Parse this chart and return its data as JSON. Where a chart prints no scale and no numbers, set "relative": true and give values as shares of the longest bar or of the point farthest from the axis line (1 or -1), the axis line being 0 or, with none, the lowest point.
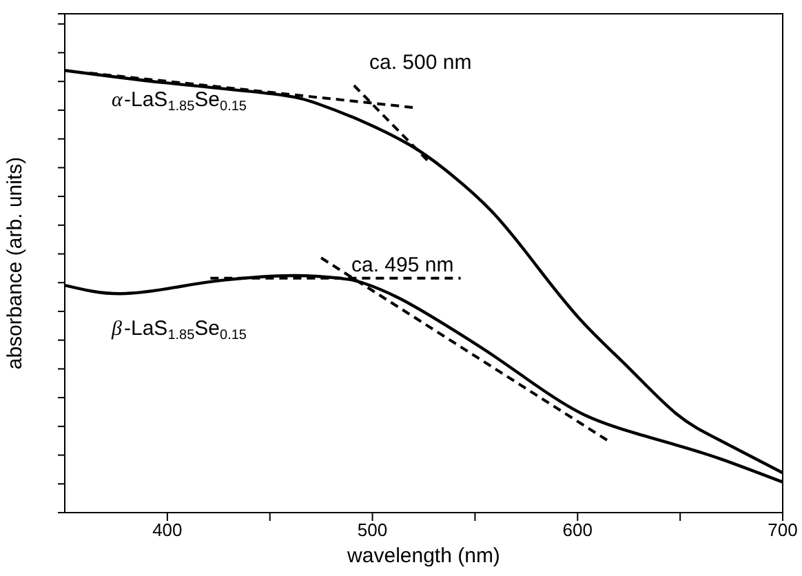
{
  "chart_data": {
    "type": "line",
    "xlabel": "wavelength (nm)",
    "ylabel": "absorbance (arb. units)",
    "relative": true,
    "xlim": [
      350,
      700
    ],
    "xticks": [
      400,
      {
        "value": 450,
        "label": null
      },
      500,
      {
        "value": 550,
        "label": null
      },
      600,
      {
        "value": 650,
        "label": null
      },
      700
    ],
    "tick_labels": "x",
    "grid": false,
    "legend": "top left",
    "marker": "none",
    "annotations": [
      "ca. 500 nm",
      "ca. 495 nm"
    ],
    "series": [
      {
        "name": "α-LaS$_{1.85}$Se$_{0.15}$",
        "color": "#000000",
        "line_style": "solid",
        "x": [
          350,
          399,
          451,
          473,
          495,
          518,
          535,
          558,
          580,
          602,
          625,
          648,
          670,
          700
        ],
        "values": [
          1.0,
          0.972,
          0.947,
          0.925,
          0.885,
          0.832,
          0.777,
          0.682,
          0.558,
          0.433,
          0.327,
          0.224,
          0.162,
          0.09
        ]
      },
      {
        "name": "β-LaS$_{1.85}$Se$_{0.15}$",
        "color": "#000000",
        "line_style": "solid",
        "x": [
          350,
          377,
          406,
          428,
          461,
          484,
          495,
          513,
          535,
          558,
          580,
          602,
          625,
          648,
          670,
          700
        ],
        "values": [
          0.514,
          0.495,
          0.511,
          0.526,
          0.536,
          0.53,
          0.52,
          0.485,
          0.426,
          0.358,
          0.287,
          0.224,
          0.184,
          0.153,
          0.121,
          0.069
        ]
      },
      {
        "color": "#000000",
        "line_style": "dashed",
        "x": [
          362,
          520
        ],
        "values": [
          0.994,
          0.916
        ]
      },
      {
        "color": "#000000",
        "line_style": "dashed",
        "x": [
          491,
          528
        ],
        "values": [
          0.966,
          0.791
        ]
      },
      {
        "color": "#000000",
        "line_style": "dashed",
        "x": [
          421,
          543
        ],
        "values": [
          0.53,
          0.53
        ]
      },
      {
        "color": "#000000",
        "line_style": "dashed",
        "x": [
          475,
          615
        ],
        "values": [
          0.576,
          0.162
        ]
      }
    ]
  }
}
